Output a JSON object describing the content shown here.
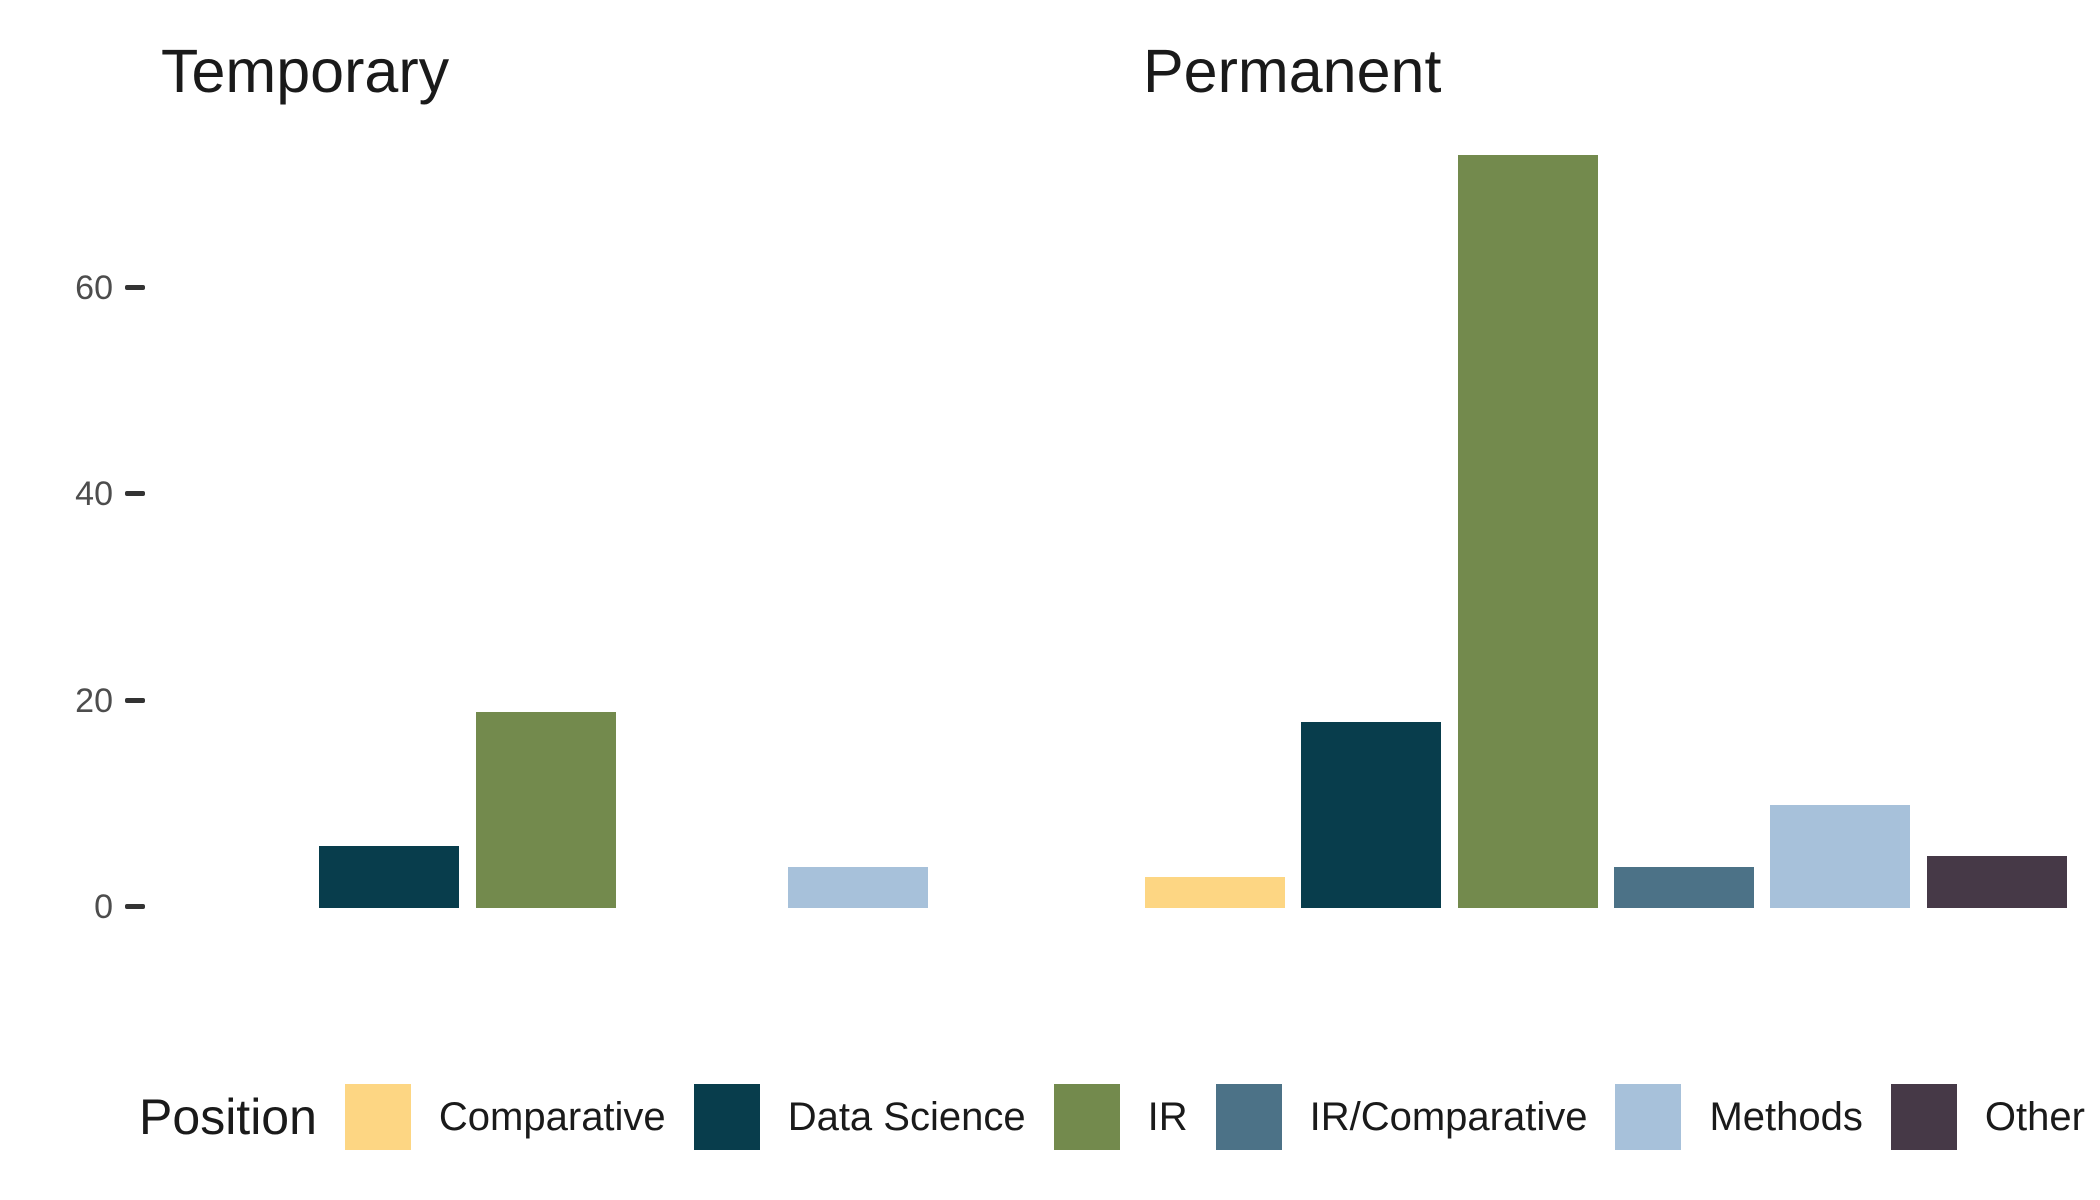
{
  "chart_data": {
    "type": "bar",
    "title": "",
    "facets": [
      {
        "title": "Temporary",
        "values": [
          0,
          6,
          19,
          0,
          4,
          0
        ]
      },
      {
        "title": "Permanent",
        "values": [
          3,
          18,
          73,
          4,
          10,
          5
        ]
      }
    ],
    "categories": [
      "Comparative",
      "Data Science",
      "IR",
      "IR/Comparative",
      "Methods",
      "Other"
    ],
    "colors": [
      "#FDD683",
      "#083D4C",
      "#738A4D",
      "#4C7287",
      "#A7C1DA",
      "#463947"
    ],
    "yticks": [
      0,
      20,
      40,
      60
    ],
    "ylim": [
      0,
      77
    ],
    "xlabel": "",
    "ylabel": "",
    "grid": false,
    "legend_title": "Position",
    "legend_position": "bottom",
    "text_colors": {
      "facet_title": "#1a1a1a",
      "tick_label": "#4d4d4d",
      "tick_mark": "#333333",
      "legend_text": "#1a1a1a"
    }
  }
}
